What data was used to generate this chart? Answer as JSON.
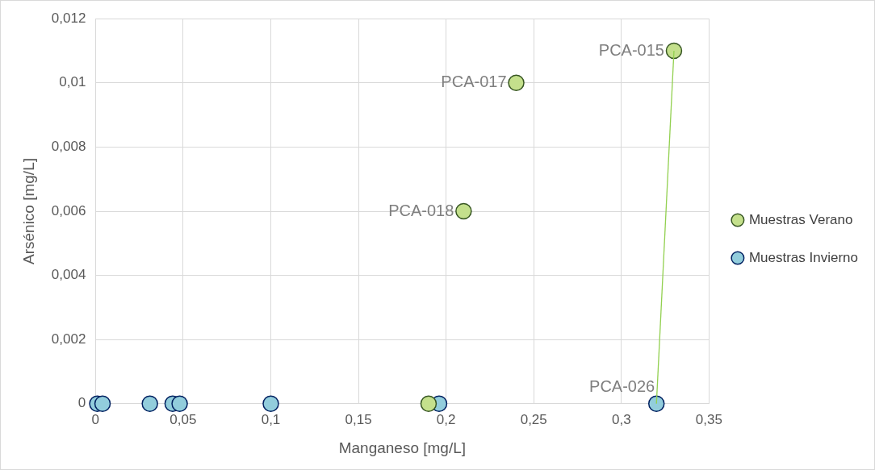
{
  "chart_data": {
    "type": "scatter",
    "xlabel": "Manganeso [mg/L]",
    "ylabel": "Arsénico [mg/L]",
    "xlim": [
      0,
      0.35
    ],
    "xticks": [
      {
        "value": 0,
        "label": "0"
      },
      {
        "value": 0.05,
        "label": "0,05"
      },
      {
        "value": 0.1,
        "label": "0,1"
      },
      {
        "value": 0.15,
        "label": "0,15"
      },
      {
        "value": 0.2,
        "label": "0,2"
      },
      {
        "value": 0.25,
        "label": "0,25"
      },
      {
        "value": 0.3,
        "label": "0,3"
      },
      {
        "value": 0.35,
        "label": "0,35"
      }
    ],
    "ylim": [
      0,
      0.012
    ],
    "yticks": [
      {
        "value": 0,
        "label": "0"
      },
      {
        "value": 0.002,
        "label": "0,002"
      },
      {
        "value": 0.004,
        "label": "0,004"
      },
      {
        "value": 0.006,
        "label": "0,006"
      },
      {
        "value": 0.008,
        "label": "0,008"
      },
      {
        "value": 0.01,
        "label": "0,01"
      },
      {
        "value": 0.012,
        "label": "0,012"
      }
    ],
    "grid": true,
    "legend": "right",
    "marker": "circle",
    "series": [
      {
        "name": "Muestras Verano",
        "color": "#c4e08c",
        "x": [
          0.19,
          0.21,
          0.24,
          0.33
        ],
        "values": [
          0,
          0.006,
          0.01,
          0.011
        ]
      },
      {
        "name": "Muestras Invierno",
        "color": "#92cddc",
        "x": [
          0.001,
          0.004,
          0.031,
          0.044,
          0.048,
          0.1,
          0.196,
          0.32
        ],
        "values": [
          0,
          0,
          0,
          0,
          0,
          0,
          0,
          0
        ]
      },
      {
        "type": "line",
        "color": "#92d050",
        "marker": "none",
        "x": [
          0.32,
          0.33
        ],
        "values": [
          0,
          0.011
        ]
      }
    ],
    "annotations": [
      {
        "text": "PCA-015",
        "x": 0.33,
        "y": 0.011
      },
      {
        "text": "PCA-017",
        "x": 0.24,
        "y": 0.01
      },
      {
        "text": "PCA-018",
        "x": 0.21,
        "y": 0.006
      },
      {
        "text": "PCA-026",
        "x": 0.32,
        "y": 0
      }
    ]
  }
}
